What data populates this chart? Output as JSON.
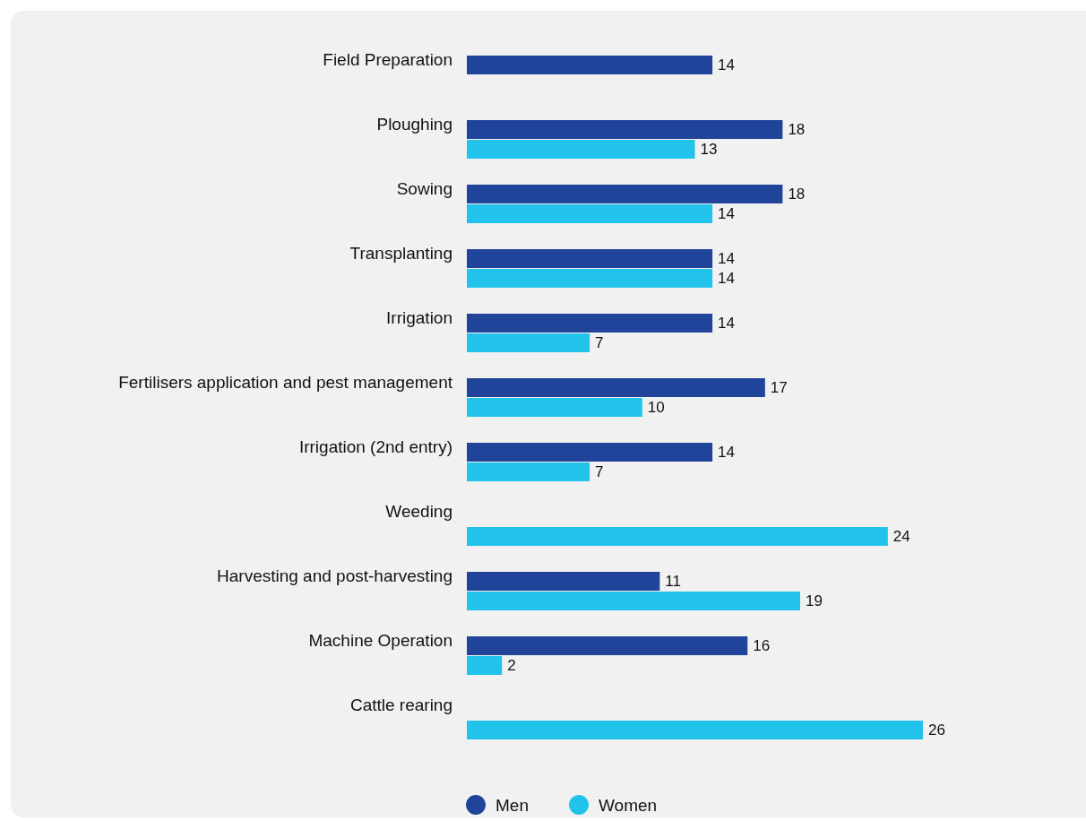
{
  "chart_data": {
    "type": "bar",
    "orientation": "horizontal",
    "categories": [
      "Field Preparation",
      "Ploughing",
      "Sowing",
      "Transplanting",
      "Irrigation",
      "Fertilisers application and pest management",
      "Irrigation (2nd entry)",
      "Weeding",
      "Harvesting and post-harvesting",
      "Machine Operation",
      "Cattle rearing"
    ],
    "series": [
      {
        "name": "Men",
        "color": "#21449b",
        "values": [
          14,
          18,
          18,
          14,
          14,
          17,
          14,
          null,
          11,
          16,
          null
        ]
      },
      {
        "name": "Women",
        "color": "#22c3ea",
        "values": [
          null,
          13,
          14,
          14,
          7,
          10,
          7,
          24,
          19,
          2,
          26
        ]
      }
    ],
    "data_labels": true,
    "legend": "bottom"
  }
}
